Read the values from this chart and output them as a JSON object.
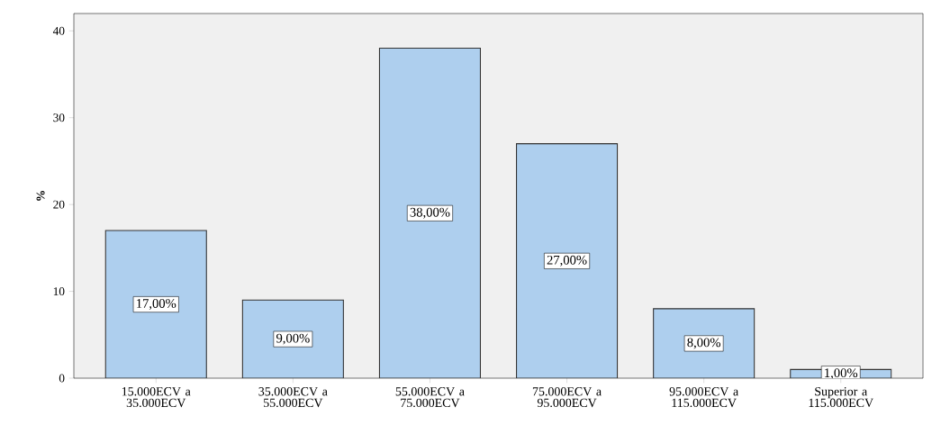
{
  "chart_data": {
    "type": "bar",
    "ylabel": "%",
    "categories": [
      "15.000ECV a 35.000ECV",
      "35.000ECV a 55.000ECV",
      "55.000ECV a 75.000ECV",
      "75.000ECV a 95.000ECV",
      "95.000ECV a 115.000ECV",
      "Superior a 115.000ECV"
    ],
    "values": [
      17,
      9,
      38,
      27,
      8,
      1
    ],
    "value_labels": [
      "17,00%",
      "9,00%",
      "38,00%",
      "27,00%",
      "8,00%",
      "1,00%"
    ],
    "color": "#aecfee",
    "ylim": [
      0,
      42
    ],
    "yticks": [
      0,
      10,
      20,
      30,
      40
    ]
  }
}
